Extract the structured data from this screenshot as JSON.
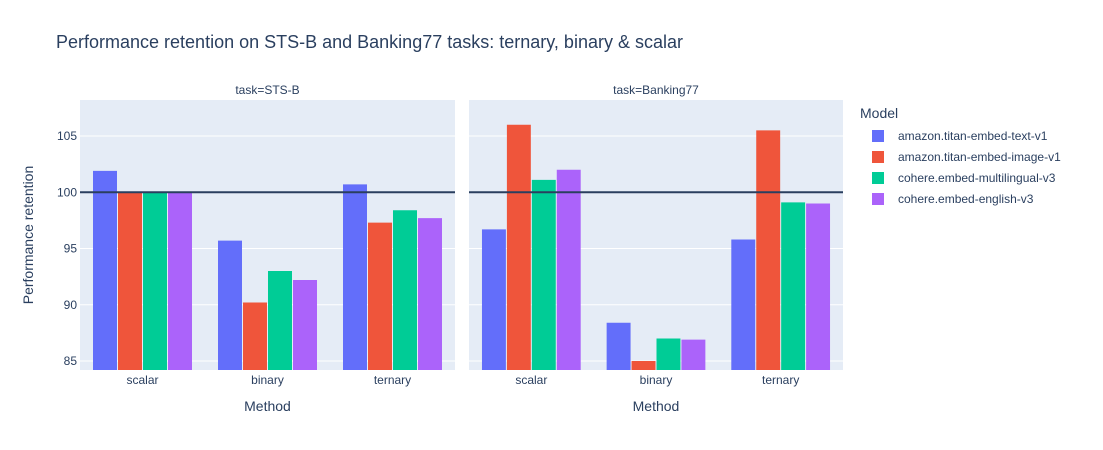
{
  "chart_data": {
    "type": "bar",
    "title": "Performance retention on STS-B and Banking77 tasks: ternary, binary & scalar",
    "ylabel": "Performance retention",
    "ylim": [
      84.2,
      108.2
    ],
    "yticks": [
      85,
      90,
      95,
      100,
      105
    ],
    "reference_line": 100,
    "legend": {
      "title": "Model",
      "placement": "right"
    },
    "series_colors": {
      "amazon.titan-embed-text-v1": "#636efa",
      "amazon.titan-embed-image-v1": "#ef553b",
      "cohere.embed-multilingual-v3": "#00cc96",
      "cohere.embed-english-v3": "#ab63fa"
    },
    "panels": [
      {
        "facet_label": "task=STS-B",
        "xlabel": "Method",
        "categories": [
          "scalar",
          "binary",
          "ternary"
        ],
        "series": [
          {
            "name": "amazon.titan-embed-text-v1",
            "values": [
              101.9,
              95.7,
              100.7
            ]
          },
          {
            "name": "amazon.titan-embed-image-v1",
            "values": [
              100.0,
              90.2,
              97.3
            ]
          },
          {
            "name": "cohere.embed-multilingual-v3",
            "values": [
              100.0,
              93.0,
              98.4
            ]
          },
          {
            "name": "cohere.embed-english-v3",
            "values": [
              100.0,
              92.2,
              97.7
            ]
          }
        ]
      },
      {
        "facet_label": "task=Banking77",
        "xlabel": "Method",
        "categories": [
          "scalar",
          "binary",
          "ternary"
        ],
        "series": [
          {
            "name": "amazon.titan-embed-text-v1",
            "values": [
              96.7,
              88.4,
              95.8
            ]
          },
          {
            "name": "amazon.titan-embed-image-v1",
            "values": [
              106.0,
              85.0,
              105.5
            ]
          },
          {
            "name": "cohere.embed-multilingual-v3",
            "values": [
              101.1,
              87.0,
              99.1
            ]
          },
          {
            "name": "cohere.embed-english-v3",
            "values": [
              102.0,
              86.9,
              99.0
            ]
          }
        ]
      }
    ]
  }
}
